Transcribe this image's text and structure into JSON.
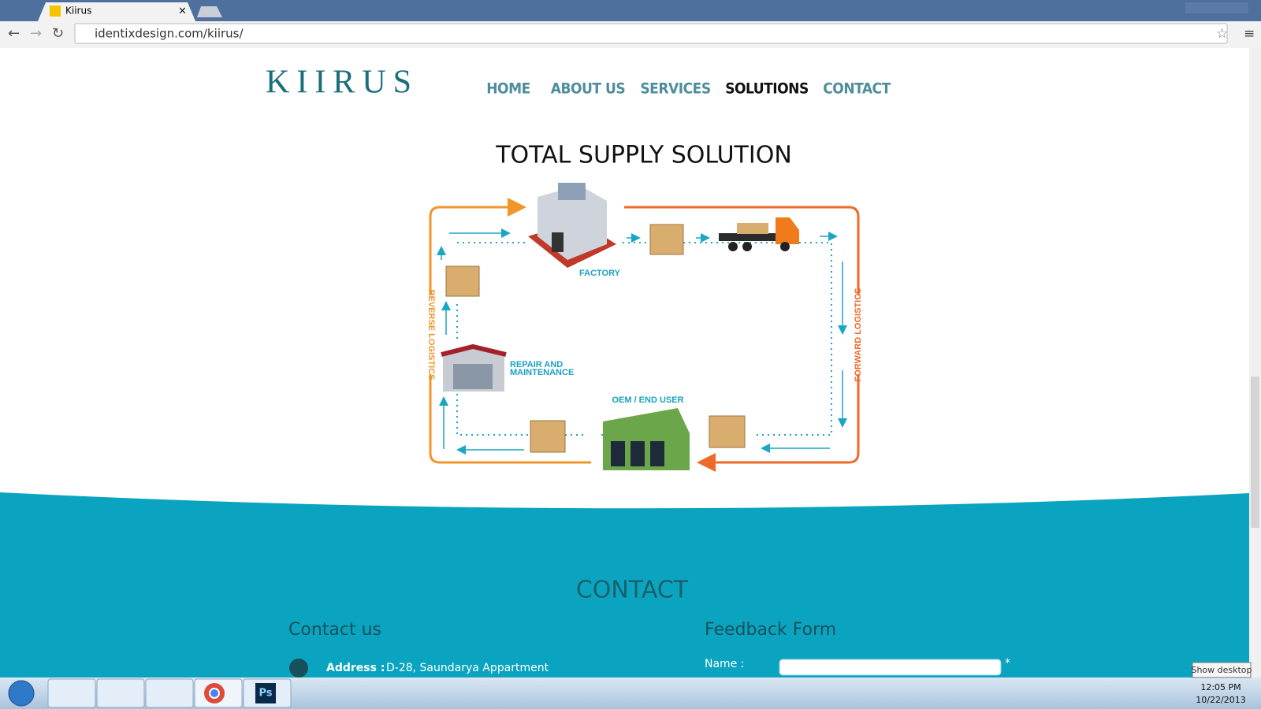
{
  "browser": {
    "tab_title": "Kiirus",
    "url": "identixdesign.com/kiirus/"
  },
  "site": {
    "logo": "KIIRUS",
    "nav": [
      "HOME",
      "ABOUT US",
      "SERVICES",
      "SOLUTIONS",
      "CONTACT"
    ],
    "section_title": "TOTAL SUPPLY SOLUTION",
    "diagram": {
      "factory": "FACTORY",
      "repair_line1": "REPAIR AND",
      "repair_line2": "MAINTENANCE",
      "oem": "OEM / END USER",
      "reverse": "REVERSE LOGISTICS",
      "forward": "FORWARD LOGISTICS"
    },
    "contact": {
      "title": "CONTACT",
      "left_heading": "Contact us",
      "right_heading": "Feedback Form",
      "address_label": "Address :",
      "address_value": "D-28, Saundarya Appartment",
      "name_label": "Name :",
      "required": "*"
    }
  },
  "taskbar": {
    "time": "12:05 PM",
    "date": "10/22/2013",
    "tooltip": "Show desktop",
    "ps": "Ps"
  }
}
